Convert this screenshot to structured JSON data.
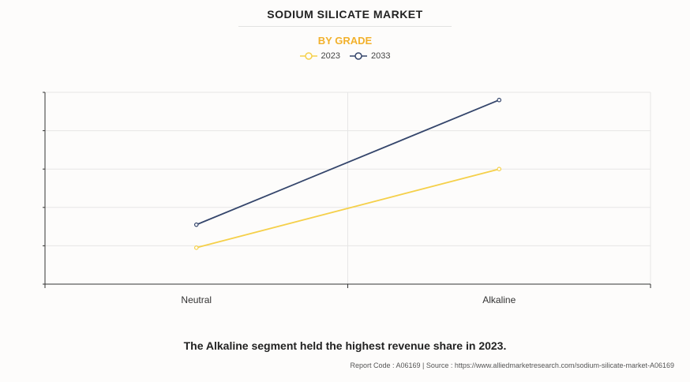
{
  "header": {
    "title": "SODIUM SILICATE MARKET",
    "subtitle": "BY GRADE"
  },
  "colors": {
    "series_2023": "#f5d04a",
    "series_2033": "#34456b",
    "subtitle": "#f2b12c",
    "grid": "#e6e6e6",
    "axis": "#333333"
  },
  "chart_data": {
    "type": "line",
    "categories": [
      "Neutral",
      "Alkaline"
    ],
    "series": [
      {
        "name": "2023",
        "values": [
          0.95,
          3.0
        ]
      },
      {
        "name": "2033",
        "values": [
          1.55,
          4.8
        ]
      }
    ],
    "ylim": [
      0,
      5
    ],
    "yticks": [
      0,
      1,
      2,
      3,
      4,
      5
    ],
    "xlabel": "",
    "ylabel": "",
    "grid": true,
    "legend": "top-center"
  },
  "footer": {
    "note": "The Alkaline segment held the highest revenue share in 2023.",
    "source": "Report Code : A06169  |  Source : https://www.alliedmarketresearch.com/sodium-silicate-market-A06169"
  }
}
